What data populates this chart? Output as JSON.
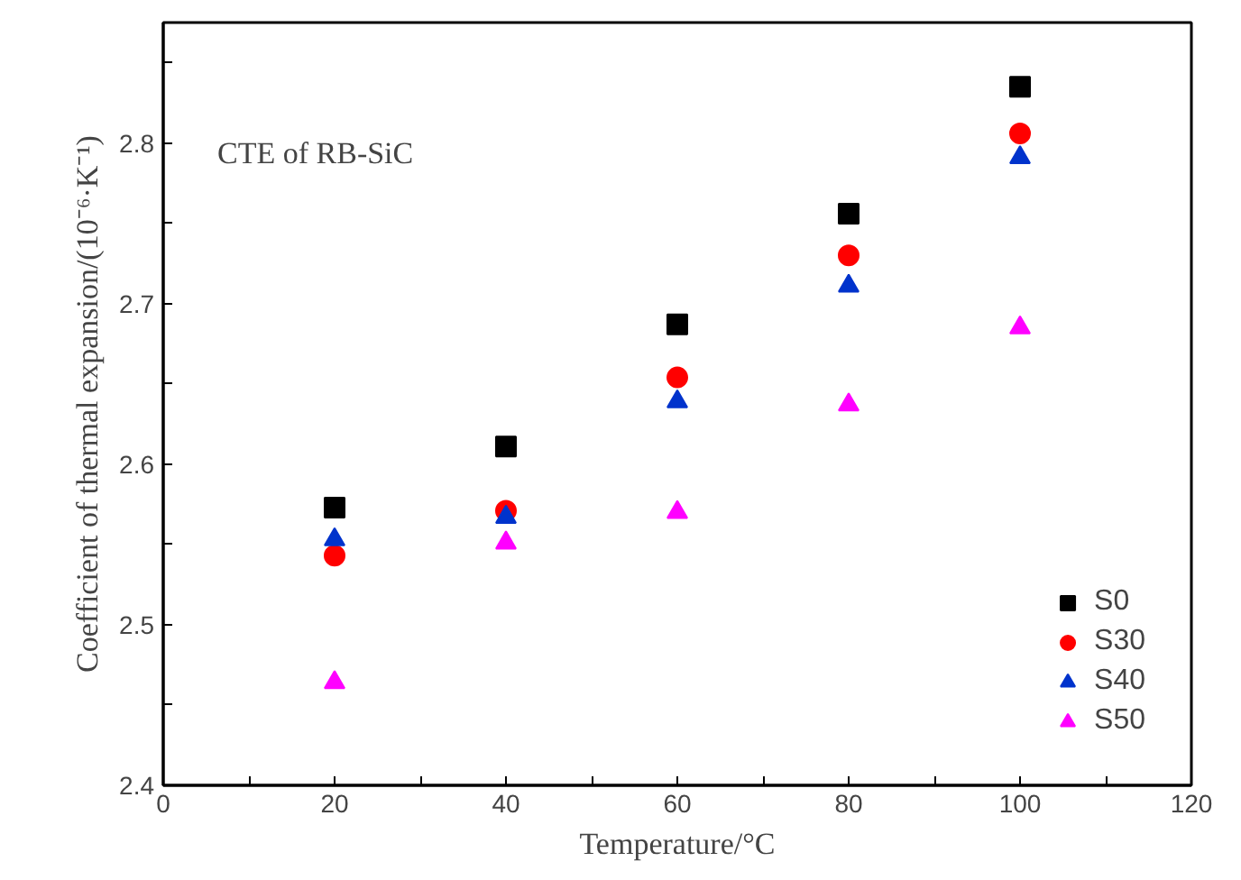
{
  "chart_data": {
    "type": "scatter",
    "xlabel": "Temperature/°C",
    "ylabel": "Coefficient of thermal expansion/(10⁻⁶·K⁻¹)",
    "annotations": [
      "CTE of RB-SiC"
    ],
    "x": [
      20,
      40,
      60,
      80,
      100
    ],
    "xlim": [
      0,
      120
    ],
    "xticks": [
      0,
      {
        "value": 10,
        "label": null
      },
      20,
      {
        "value": 30,
        "label": null
      },
      40,
      {
        "value": 50,
        "label": null
      },
      60,
      {
        "value": 70,
        "label": null
      },
      80,
      {
        "value": 90,
        "label": null
      },
      100,
      {
        "value": 110,
        "label": null
      },
      120
    ],
    "ylim": [
      2.4,
      2.875
    ],
    "yticks": [
      2.4,
      {
        "value": 2.45,
        "label": null
      },
      2.5,
      {
        "value": 2.55,
        "label": null
      },
      2.6,
      {
        "value": 2.65,
        "label": null
      },
      2.7,
      {
        "value": 2.75,
        "label": null
      },
      2.8,
      {
        "value": 2.85,
        "label": null
      }
    ],
    "grid": false,
    "legend": "bottom right",
    "series": [
      {
        "name": "S0",
        "color": "#000000",
        "marker": "square",
        "values": [
          2.573,
          2.611,
          2.687,
          2.756,
          2.835
        ]
      },
      {
        "name": "S30",
        "color": "#ff0000",
        "marker": "circle",
        "values": [
          2.543,
          2.571,
          2.654,
          2.73,
          2.806
        ]
      },
      {
        "name": "S40",
        "color": "#0033cc",
        "marker": "triangle",
        "values": [
          2.553,
          2.567,
          2.639,
          2.711,
          2.791
        ]
      },
      {
        "name": "S50",
        "color": "#ff00ff",
        "marker": "triangle",
        "values": [
          2.464,
          2.551,
          2.57,
          2.637,
          2.685
        ]
      }
    ]
  }
}
